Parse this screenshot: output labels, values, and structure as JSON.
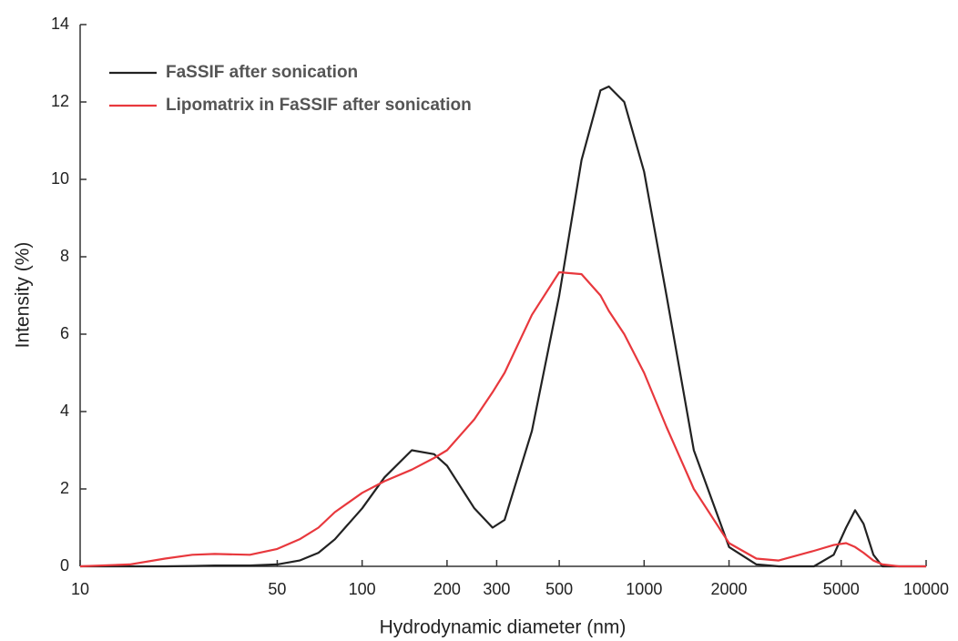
{
  "chart_data": {
    "type": "line",
    "xlabel": "Hydrodynamic diameter (nm)",
    "ylabel": "Intensity (%)",
    "xscale": "log",
    "xlim": [
      10,
      10000
    ],
    "xticks": [
      10,
      50,
      100,
      200,
      300,
      500,
      1000,
      2000,
      5000,
      10000
    ],
    "ylim": [
      0,
      14
    ],
    "yticks": [
      0,
      2,
      4,
      6,
      8,
      10,
      12,
      14
    ],
    "legend": "upper left",
    "x": [
      10,
      15,
      20,
      25,
      30,
      40,
      50,
      60,
      70,
      80,
      100,
      120,
      150,
      180,
      200,
      250,
      290,
      320,
      400,
      500,
      600,
      700,
      750,
      850,
      1000,
      1200,
      1500,
      2000,
      2500,
      3000,
      4000,
      4700,
      5200,
      5600,
      6000,
      6500,
      7000,
      8000,
      10000
    ],
    "series": [
      {
        "name": "FaSSIF after sonication",
        "color": "#222222",
        "values": [
          0,
          0,
          0,
          0.01,
          0.02,
          0.02,
          0.05,
          0.15,
          0.35,
          0.7,
          1.5,
          2.3,
          3.0,
          2.9,
          2.6,
          1.5,
          1.0,
          1.2,
          3.5,
          7.0,
          10.5,
          12.3,
          12.4,
          12.0,
          10.2,
          7.0,
          3.0,
          0.5,
          0.05,
          0,
          0,
          0.3,
          1.0,
          1.45,
          1.1,
          0.3,
          0,
          0,
          0
        ]
      },
      {
        "name": "Lipomatrix in FaSSIF after sonication",
        "color": "#e8383d",
        "values": [
          0,
          0.05,
          0.2,
          0.3,
          0.32,
          0.3,
          0.45,
          0.7,
          1.0,
          1.4,
          1.9,
          2.2,
          2.5,
          2.8,
          3.0,
          3.8,
          4.5,
          5.0,
          6.5,
          7.6,
          7.55,
          7.0,
          6.6,
          6.0,
          5.0,
          3.6,
          2.0,
          0.6,
          0.2,
          0.15,
          0.4,
          0.55,
          0.6,
          0.5,
          0.35,
          0.15,
          0.05,
          0,
          0
        ]
      }
    ]
  }
}
